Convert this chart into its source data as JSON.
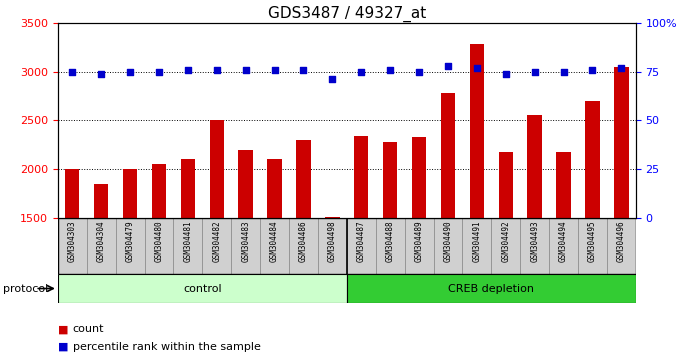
{
  "title": "GDS3487 / 49327_at",
  "samples": [
    "GSM304303",
    "GSM304304",
    "GSM304479",
    "GSM304480",
    "GSM304481",
    "GSM304482",
    "GSM304483",
    "GSM304484",
    "GSM304486",
    "GSM304498",
    "GSM304487",
    "GSM304488",
    "GSM304489",
    "GSM304490",
    "GSM304491",
    "GSM304492",
    "GSM304493",
    "GSM304494",
    "GSM304495",
    "GSM304496"
  ],
  "counts": [
    2000,
    1850,
    2000,
    2050,
    2100,
    2500,
    2200,
    2100,
    2300,
    1510,
    2340,
    2280,
    2330,
    2780,
    3280,
    2170,
    2560,
    2170,
    2700,
    3050
  ],
  "percentiles": [
    75,
    74,
    75,
    75,
    76,
    76,
    76,
    76,
    76,
    71,
    75,
    76,
    75,
    78,
    77,
    74,
    75,
    75,
    76,
    77
  ],
  "control_count": 10,
  "ylim_left": [
    1500,
    3500
  ],
  "ylim_right": [
    0,
    100
  ],
  "yticks_left": [
    1500,
    2000,
    2500,
    3000,
    3500
  ],
  "yticks_right": [
    0,
    25,
    50,
    75,
    100
  ],
  "bar_color": "#cc0000",
  "dot_color": "#0000cc",
  "control_bg": "#ccffcc",
  "creb_bg": "#33cc33",
  "sample_box_bg": "#d0d0d0",
  "protocol_label": "protocol",
  "control_label": "control",
  "creb_label": "CREB depletion",
  "legend_count": "count",
  "legend_pct": "percentile rank within the sample",
  "title_fontsize": 11,
  "tick_fontsize": 8,
  "label_fontsize": 8,
  "sample_fontsize": 5.5
}
